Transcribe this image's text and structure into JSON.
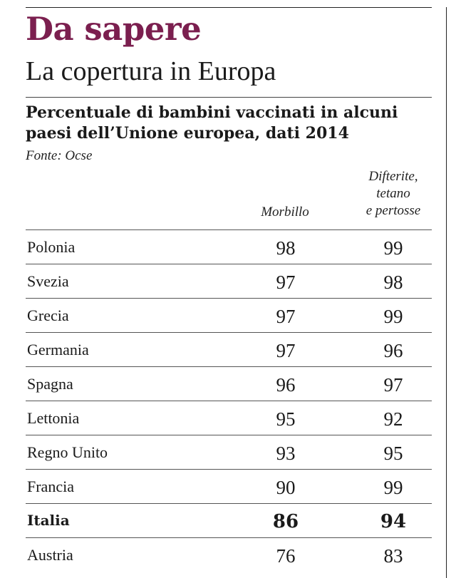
{
  "header": {
    "kicker": "Da sapere",
    "subtitle": "La copertura in Europa"
  },
  "chart_data": {
    "type": "table",
    "title": "Percentuale di bambini vaccinati in alcuni paesi dell’Unione europea, dati 2014",
    "source": "Fonte: Ocse",
    "columns": {
      "morbillo": "Morbillo",
      "dtp": [
        "Difterite,",
        "tetano",
        "e pertosse"
      ]
    },
    "rows": [
      {
        "country": "Polonia",
        "morbillo": 98,
        "dtp": 99,
        "highlight": false
      },
      {
        "country": "Svezia",
        "morbillo": 97,
        "dtp": 98,
        "highlight": false
      },
      {
        "country": "Grecia",
        "morbillo": 97,
        "dtp": 99,
        "highlight": false
      },
      {
        "country": "Germania",
        "morbillo": 97,
        "dtp": 96,
        "highlight": false
      },
      {
        "country": "Spagna",
        "morbillo": 96,
        "dtp": 97,
        "highlight": false
      },
      {
        "country": "Lettonia",
        "morbillo": 95,
        "dtp": 92,
        "highlight": false
      },
      {
        "country": "Regno Unito",
        "morbillo": 93,
        "dtp": 95,
        "highlight": false
      },
      {
        "country": "Francia",
        "morbillo": 90,
        "dtp": 99,
        "highlight": false
      },
      {
        "country": "Italia",
        "morbillo": 86,
        "dtp": 94,
        "highlight": true
      },
      {
        "country": "Austria",
        "morbillo": 76,
        "dtp": 83,
        "highlight": false
      }
    ],
    "colors": {
      "kicker": "#7b1f4f",
      "text": "#1a1a1a"
    }
  }
}
